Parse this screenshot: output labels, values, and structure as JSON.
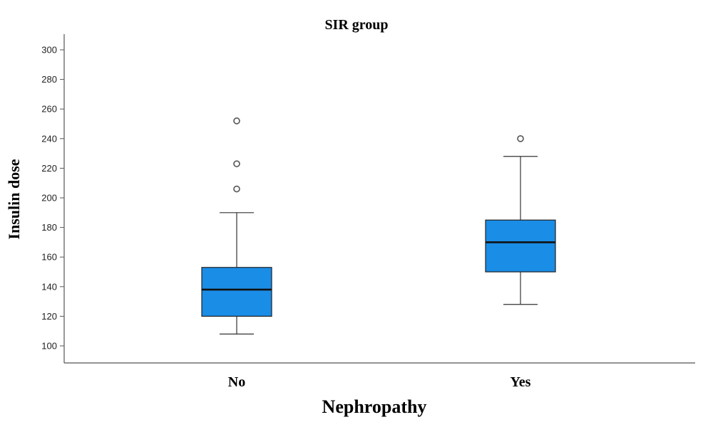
{
  "chart_data": {
    "type": "box",
    "title": "SIR group",
    "xlabel": "Nephropathy",
    "ylabel": "Insulin dose",
    "categories": [
      "No",
      "Yes"
    ],
    "yticks": [
      100,
      120,
      140,
      160,
      180,
      200,
      220,
      240,
      260,
      280,
      300
    ],
    "ylim": [
      90,
      308
    ],
    "grid": false,
    "box_color": "#1a8de6",
    "boxes": [
      {
        "category": "No",
        "whisker_low": 108,
        "q1": 120,
        "median": 138,
        "q3": 153,
        "whisker_high": 190,
        "outliers": [
          206,
          223,
          252
        ]
      },
      {
        "category": "Yes",
        "whisker_low": 128,
        "q1": 150,
        "median": 170,
        "q3": 185,
        "whisker_high": 228,
        "outliers": [
          240
        ]
      }
    ]
  }
}
